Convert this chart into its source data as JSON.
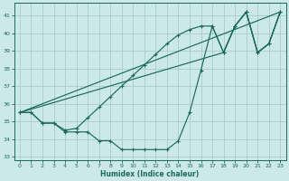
{
  "xlabel": "Humidex (Indice chaleur)",
  "bg_color": "#cce8e8",
  "grid_color": "#aacccc",
  "line_color": "#1a6b5a",
  "xlim": [
    -0.5,
    23.5
  ],
  "ylim": [
    32.8,
    41.7
  ],
  "yticks": [
    33,
    34,
    35,
    36,
    37,
    38,
    39,
    40,
    41
  ],
  "xticks": [
    0,
    1,
    2,
    3,
    4,
    5,
    6,
    7,
    8,
    9,
    10,
    11,
    12,
    13,
    14,
    15,
    16,
    17,
    18,
    19,
    20,
    21,
    22,
    23
  ],
  "series": [
    {
      "x": [
        0,
        1,
        2,
        3,
        4,
        5,
        6,
        7,
        8,
        9,
        10,
        11,
        12,
        13,
        14,
        15,
        16,
        17,
        18,
        19,
        20,
        21,
        22,
        23
      ],
      "y": [
        35.5,
        35.5,
        34.9,
        34.9,
        34.4,
        34.4,
        34.4,
        33.9,
        33.9,
        33.4,
        33.4,
        33.4,
        33.4,
        33.4,
        33.9,
        35.5,
        37.9,
        40.4,
        38.9,
        40.4,
        41.2,
        38.9,
        39.4,
        41.2
      ],
      "marker": true,
      "markersize": 2.5
    },
    {
      "x": [
        0,
        1,
        2,
        3,
        4,
        5,
        6,
        7,
        8,
        9,
        10,
        11,
        12,
        13,
        14,
        15,
        16,
        17,
        18,
        19,
        20,
        21,
        22,
        23
      ],
      "y": [
        35.5,
        35.5,
        34.9,
        34.9,
        34.5,
        34.6,
        35.2,
        35.8,
        36.4,
        37.0,
        37.6,
        38.2,
        38.8,
        39.4,
        39.9,
        40.2,
        40.4,
        40.4,
        38.9,
        40.4,
        41.2,
        38.9,
        39.4,
        41.2
      ],
      "marker": true,
      "markersize": 2.5
    },
    {
      "x": [
        0,
        23
      ],
      "y": [
        35.5,
        41.2
      ],
      "marker": false,
      "markersize": 0
    },
    {
      "x": [
        0,
        18,
        19,
        20,
        21,
        22,
        23
      ],
      "y": [
        35.5,
        38.9,
        40.4,
        41.2,
        38.9,
        39.4,
        41.2
      ],
      "marker": false,
      "markersize": 0
    }
  ]
}
